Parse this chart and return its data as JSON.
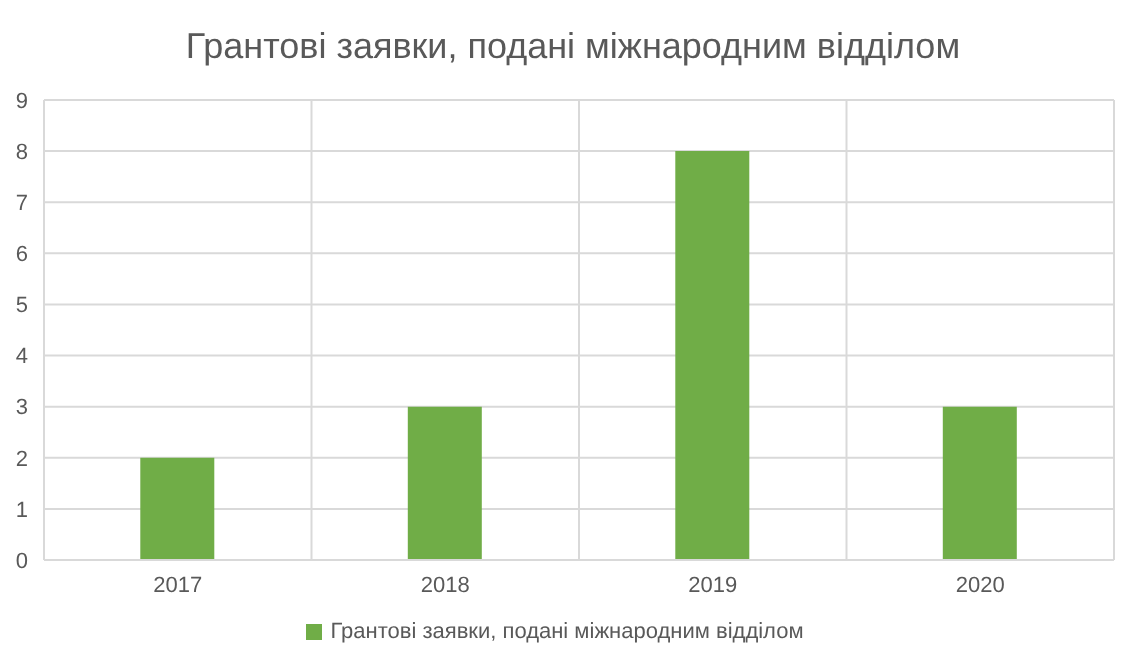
{
  "chart_data": {
    "type": "bar",
    "title": "Грантові заявки, подані міжнародним відділом",
    "categories": [
      "2017",
      "2018",
      "2019",
      "2020"
    ],
    "series": [
      {
        "name": "Грантові заявки, подані міжнародним відділом",
        "color": "#70ad47",
        "values": [
          2,
          3,
          8,
          3
        ]
      }
    ],
    "ylim": [
      0,
      9
    ],
    "yticks": [
      0,
      1,
      2,
      3,
      4,
      5,
      6,
      7,
      8,
      9
    ],
    "grid": true,
    "legend": "bottom"
  }
}
